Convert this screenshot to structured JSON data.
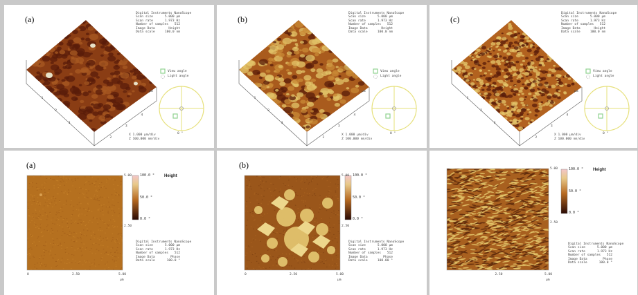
{
  "top_panels": [
    {
      "label": "(a)",
      "meta_title": "Digital Instruments NanoScope",
      "meta": [
        [
          "Scan size",
          "5.000 µm"
        ],
        [
          "Scan rate",
          "1.973 Hz"
        ],
        [
          "Number of samples",
          "512"
        ],
        [
          "Image Data",
          "Height"
        ],
        [
          "Data scale",
          "100.0 nm"
        ]
      ],
      "view_angle": "View angle",
      "light_angle": "Light angle",
      "scale_x": "X 1.000 µm/div",
      "scale_z": "Z 100.000 nm/div",
      "unit": "µm",
      "dial": "0 °"
    },
    {
      "label": "(b)",
      "meta_title": "Digital Instruments NanoScope",
      "meta": [
        [
          "Scan size",
          "5.000 µm"
        ],
        [
          "Scan rate",
          "1.973 Hz"
        ],
        [
          "Number of samples",
          "512"
        ],
        [
          "Image Data",
          "Height"
        ],
        [
          "Data scale",
          "100.0 nm"
        ]
      ],
      "view_angle": "View angle",
      "light_angle": "Light angle",
      "scale_x": "X 1.000 µm/div",
      "scale_z": "Z 100.000 nm/div",
      "unit": "µm",
      "dial": "0 °"
    },
    {
      "label": "(c)",
      "meta_title": "Digital Instruments NanoScope",
      "meta": [
        [
          "Scan size",
          "5.000 µm"
        ],
        [
          "Scan rate",
          "1.973 Hz"
        ],
        [
          "Number of samples",
          "512"
        ],
        [
          "Image Data",
          "Height"
        ],
        [
          "Data scale",
          "100.0 nm"
        ]
      ],
      "view_angle": "View angle",
      "light_angle": "Light angle",
      "scale_x": "X 1.000 µm/div",
      "scale_z": "Z 100.000 nm/div",
      "unit": "µm",
      "dial": "0 °"
    }
  ],
  "bottom_panels": [
    {
      "label": "(a)",
      "cbar_max": "100.0 °",
      "cbar_mid": "50.0 °",
      "cbar_min": "0.0 °",
      "height_label": "Height",
      "axis_top": "5.00",
      "axis_mid": "2.50",
      "axis_x": [
        "0",
        "2.50",
        "5.00"
      ],
      "unit": "µm",
      "meta_title": "Digital Instruments NanoScope",
      "meta": [
        [
          "Scan size",
          "5.000 µm"
        ],
        [
          "Scan rate",
          "1.973 Hz"
        ],
        [
          "Number of samples",
          "512"
        ],
        [
          "Image Data",
          "Phase"
        ],
        [
          "Data scale",
          "100.0 °"
        ]
      ]
    },
    {
      "label": "(b)",
      "cbar_max": "100.0 °",
      "cbar_mid": "50.0 °",
      "cbar_min": "0.0 °",
      "height_label": "",
      "axis_top": "5.00",
      "axis_mid": "2.50",
      "axis_x": [
        "0",
        "2.50",
        "5.00"
      ],
      "unit": "µm",
      "meta_title": "Digital Instruments NanoScope",
      "meta": [
        [
          "Scan size",
          "5.000 µm"
        ],
        [
          "Scan rate",
          "1.973 Hz"
        ],
        [
          "Number of samples",
          "512"
        ],
        [
          "Image Data",
          "Phase"
        ],
        [
          "Data scale",
          "100.00 °"
        ]
      ]
    },
    {
      "label": "",
      "cbar_max": "100.0 °",
      "cbar_mid": "50.0 °",
      "cbar_min": "0.0 °",
      "height_label": "Height",
      "axis_top": "5.00",
      "axis_mid": "2.50",
      "axis_x": [
        "2.50",
        "5.00"
      ],
      "unit": "µm",
      "meta_title": "Digital Instruments NanoScope",
      "meta": [
        [
          "Scan size",
          "5.000 µm"
        ],
        [
          "Scan rate",
          "1.973 Hz"
        ],
        [
          "Number of samples",
          "512"
        ],
        [
          "Image Data",
          "Phase"
        ],
        [
          "Data scale",
          "100.0 °"
        ]
      ]
    }
  ],
  "colors": {
    "bg": "#c9c9c9",
    "dark": "#5a1c0a",
    "mid": "#b2621f",
    "light": "#e3c46a",
    "cbar_top": "#f3c6c9",
    "dial": "#e6e07a",
    "marker": "#8fd28f"
  }
}
